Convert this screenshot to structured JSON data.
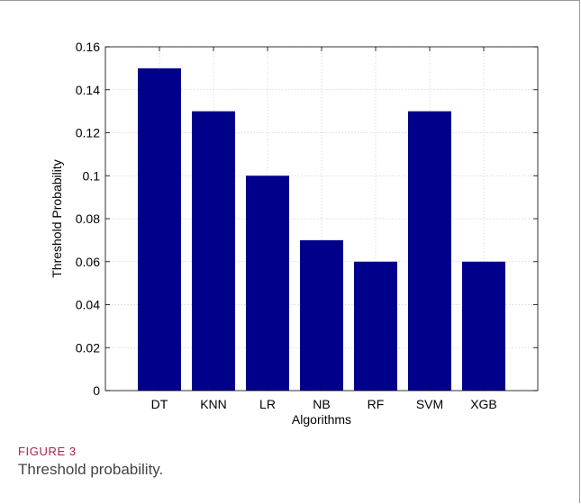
{
  "chart_data": {
    "type": "bar",
    "categories": [
      "DT",
      "KNN",
      "LR",
      "NB",
      "RF",
      "SVM",
      "XGB"
    ],
    "values": [
      0.15,
      0.13,
      0.1,
      0.07,
      0.06,
      0.13,
      0.06
    ],
    "title": "",
    "xlabel": "Algorithms",
    "ylabel": "Threshold Probability",
    "ylim": [
      0,
      0.16
    ],
    "yticks": [
      "0",
      "0.02",
      "0.04",
      "0.06",
      "0.08",
      "0.1",
      "0.12",
      "0.14",
      "0.16"
    ],
    "grid": true,
    "bar_color": "#00008b"
  },
  "caption": {
    "label": "FIGURE 3",
    "text": "Threshold probability."
  }
}
